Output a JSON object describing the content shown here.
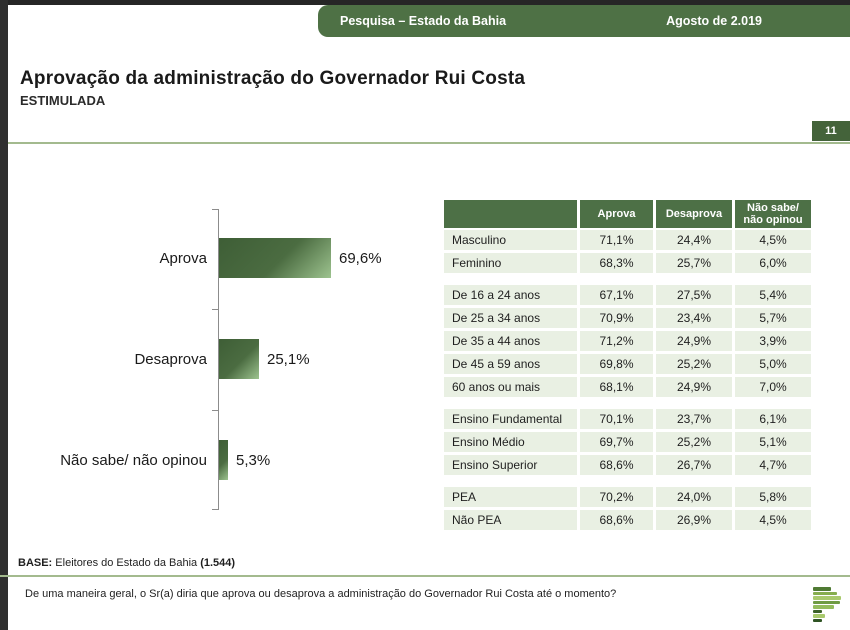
{
  "header": {
    "bar_title": "Pesquisa – Estado da Bahia",
    "bar_date": "Agosto de 2.019"
  },
  "title": "Aprovação da administração do Governador Rui Costa",
  "subtitle": "ESTIMULADA",
  "page_number": "11",
  "chart_data": {
    "type": "bar",
    "orientation": "horizontal",
    "title": "Aprovação da administração do Governador Rui Costa (ESTIMULADA)",
    "categories": [
      "Aprova",
      "Desaprova",
      "Não sabe/ não opinou"
    ],
    "values": [
      69.6,
      25.1,
      5.3
    ],
    "value_labels": [
      "69,6%",
      "25,1%",
      "5,3%"
    ],
    "xlim": [
      0,
      100
    ],
    "grid": false,
    "legend": false
  },
  "table": {
    "headers": [
      "Aprova",
      "Desaprova",
      "Não sabe/ não opinou"
    ],
    "sections": [
      {
        "rows": [
          {
            "label": "Masculino",
            "values": [
              "71,1%",
              "24,4%",
              "4,5%"
            ]
          },
          {
            "label": "Feminino",
            "values": [
              "68,3%",
              "25,7%",
              "6,0%"
            ]
          }
        ]
      },
      {
        "rows": [
          {
            "label": "De 16 a 24 anos",
            "values": [
              "67,1%",
              "27,5%",
              "5,4%"
            ]
          },
          {
            "label": "De 25 a 34 anos",
            "values": [
              "70,9%",
              "23,4%",
              "5,7%"
            ]
          },
          {
            "label": "De 35 a 44 anos",
            "values": [
              "71,2%",
              "24,9%",
              "3,9%"
            ]
          },
          {
            "label": "De 45 a 59 anos",
            "values": [
              "69,8%",
              "25,2%",
              "5,0%"
            ]
          },
          {
            "label": "60 anos ou mais",
            "values": [
              "68,1%",
              "24,9%",
              "7,0%"
            ]
          }
        ]
      },
      {
        "rows": [
          {
            "label": "Ensino Fundamental",
            "values": [
              "70,1%",
              "23,7%",
              "6,1%"
            ]
          },
          {
            "label": "Ensino Médio",
            "values": [
              "69,7%",
              "25,2%",
              "5,1%"
            ]
          },
          {
            "label": "Ensino Superior",
            "values": [
              "68,6%",
              "26,7%",
              "4,7%"
            ]
          }
        ]
      },
      {
        "rows": [
          {
            "label": "PEA",
            "values": [
              "70,2%",
              "24,0%",
              "5,8%"
            ]
          },
          {
            "label": "Não PEA",
            "values": [
              "68,6%",
              "26,9%",
              "4,5%"
            ]
          }
        ]
      }
    ]
  },
  "footer": {
    "base_label": "BASE:",
    "base_text": " Eleitores do Estado da Bahia ",
    "base_count": "(1.544)",
    "question": "De uma maneira geral, o Sr(a) diria que aprova ou desaprova a administração do Governador Rui Costa até o momento?"
  },
  "logo_icon": "parana-p-bars-logo",
  "colors": {
    "header_green": "#4e7145",
    "table_header_green": "#4d7046",
    "badge_green": "#44633a",
    "row_bg": "#e9f0e3",
    "line_green": "#a3ba8e",
    "bar_gradient_start": "#3e5e36",
    "bar_gradient_end": "#9dc38f",
    "top_strip": "#262626"
  }
}
